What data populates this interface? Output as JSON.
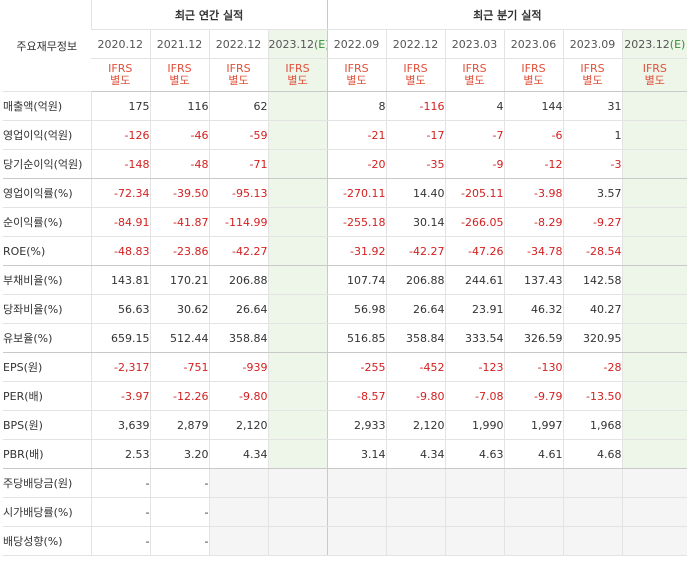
{
  "header": {
    "corner": "주요재무정보",
    "annual_group": "최근 연간 실적",
    "quarterly_group": "최근 분기 실적"
  },
  "annual": [
    {
      "period": "2020.12",
      "est": false
    },
    {
      "period": "2021.12",
      "est": false
    },
    {
      "period": "2022.12",
      "est": false
    },
    {
      "period": "2023.12",
      "est": true
    }
  ],
  "quarterly": [
    {
      "period": "2022.09",
      "est": false
    },
    {
      "period": "2022.12",
      "est": false
    },
    {
      "period": "2023.03",
      "est": false
    },
    {
      "period": "2023.06",
      "est": false
    },
    {
      "period": "2023.09",
      "est": false
    },
    {
      "period": "2023.12",
      "est": true
    }
  ],
  "est_mark": "(E)",
  "ifrs": {
    "line1": "IFRS",
    "line2": "별도"
  },
  "rows": [
    {
      "label": "매출액(억원)",
      "annual": [
        "175",
        "116",
        "62",
        ""
      ],
      "quarterly": [
        "8",
        "-116",
        "4",
        "144",
        "31",
        ""
      ]
    },
    {
      "label": "영업이익(억원)",
      "annual": [
        "-126",
        "-46",
        "-59",
        ""
      ],
      "quarterly": [
        "-21",
        "-17",
        "-7",
        "-6",
        "1",
        ""
      ]
    },
    {
      "label": "당기순이익(억원)",
      "annual": [
        "-148",
        "-48",
        "-71",
        ""
      ],
      "quarterly": [
        "-20",
        "-35",
        "-9",
        "-12",
        "-3",
        ""
      ]
    },
    {
      "label": "영업이익률(%)",
      "annual": [
        "-72.34",
        "-39.50",
        "-95.13",
        ""
      ],
      "quarterly": [
        "-270.11",
        "14.40",
        "-205.11",
        "-3.98",
        "3.57",
        ""
      ]
    },
    {
      "label": "순이익률(%)",
      "annual": [
        "-84.91",
        "-41.87",
        "-114.99",
        ""
      ],
      "quarterly": [
        "-255.18",
        "30.14",
        "-266.05",
        "-8.29",
        "-9.27",
        ""
      ]
    },
    {
      "label": "ROE(%)",
      "annual": [
        "-48.83",
        "-23.86",
        "-42.27",
        ""
      ],
      "quarterly": [
        "-31.92",
        "-42.27",
        "-47.26",
        "-34.78",
        "-28.54",
        ""
      ]
    },
    {
      "label": "부채비율(%)",
      "annual": [
        "143.81",
        "170.21",
        "206.88",
        ""
      ],
      "quarterly": [
        "107.74",
        "206.88",
        "244.61",
        "137.43",
        "142.58",
        ""
      ]
    },
    {
      "label": "당좌비율(%)",
      "annual": [
        "56.63",
        "30.62",
        "26.64",
        ""
      ],
      "quarterly": [
        "56.98",
        "26.64",
        "23.91",
        "46.32",
        "40.27",
        ""
      ]
    },
    {
      "label": "유보율(%)",
      "annual": [
        "659.15",
        "512.44",
        "358.84",
        ""
      ],
      "quarterly": [
        "516.85",
        "358.84",
        "333.54",
        "326.59",
        "320.95",
        ""
      ]
    },
    {
      "label": "EPS(원)",
      "annual": [
        "-2,317",
        "-751",
        "-939",
        ""
      ],
      "quarterly": [
        "-255",
        "-452",
        "-123",
        "-130",
        "-28",
        ""
      ]
    },
    {
      "label": "PER(배)",
      "annual": [
        "-3.97",
        "-12.26",
        "-9.80",
        ""
      ],
      "quarterly": [
        "-8.57",
        "-9.80",
        "-7.08",
        "-9.79",
        "-13.50",
        ""
      ]
    },
    {
      "label": "BPS(원)",
      "annual": [
        "3,639",
        "2,879",
        "2,120",
        ""
      ],
      "quarterly": [
        "2,933",
        "2,120",
        "1,990",
        "1,997",
        "1,968",
        ""
      ]
    },
    {
      "label": "PBR(배)",
      "annual": [
        "2.53",
        "3.20",
        "4.34",
        ""
      ],
      "quarterly": [
        "3.14",
        "4.34",
        "4.63",
        "4.61",
        "4.68",
        ""
      ]
    },
    {
      "label": "주당배당금(원)",
      "annual": [
        "-",
        "-",
        null,
        null
      ],
      "quarterly": [
        null,
        null,
        null,
        null,
        null,
        null
      ]
    },
    {
      "label": "시가배당률(%)",
      "annual": [
        "-",
        "-",
        null,
        null
      ],
      "quarterly": [
        null,
        null,
        null,
        null,
        null,
        null
      ]
    },
    {
      "label": "배당성향(%)",
      "annual": [
        "-",
        "-",
        null,
        null
      ],
      "quarterly": [
        null,
        null,
        null,
        null,
        null,
        null
      ]
    }
  ],
  "colors": {
    "negative": "#d42020",
    "ifrs": "#e0503a",
    "estimate_bg": "#eef6ea",
    "blank_bg": "#f5f5f5"
  }
}
